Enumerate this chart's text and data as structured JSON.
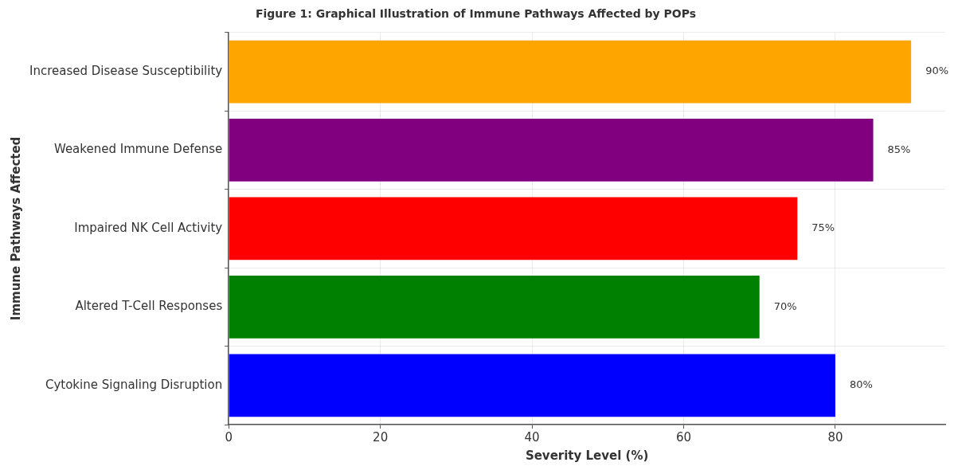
{
  "chart_data": {
    "type": "bar",
    "orientation": "horizontal",
    "title": "Figure 1: Graphical Illustration of Immune Pathways Affected by POPs",
    "xlabel": "Severity Level (%)",
    "ylabel": "Immune Pathways Affected",
    "categories": [
      "Increased Disease Susceptibility",
      "Weakened Immune Defense",
      "Impaired NK Cell Activity",
      "Altered T-Cell Responses",
      "Cytokine Signaling Disruption"
    ],
    "values": [
      90,
      85,
      75,
      70,
      80
    ],
    "colors": [
      "#ffa500",
      "#800080",
      "#ff0000",
      "#008000",
      "#0000ff"
    ],
    "value_labels": [
      "90%",
      "85%",
      "75%",
      "70%",
      "80%"
    ],
    "xlim": [
      0,
      94.5
    ],
    "xticks": [
      0,
      20,
      40,
      60,
      80
    ],
    "grid": true,
    "legend": false
  }
}
